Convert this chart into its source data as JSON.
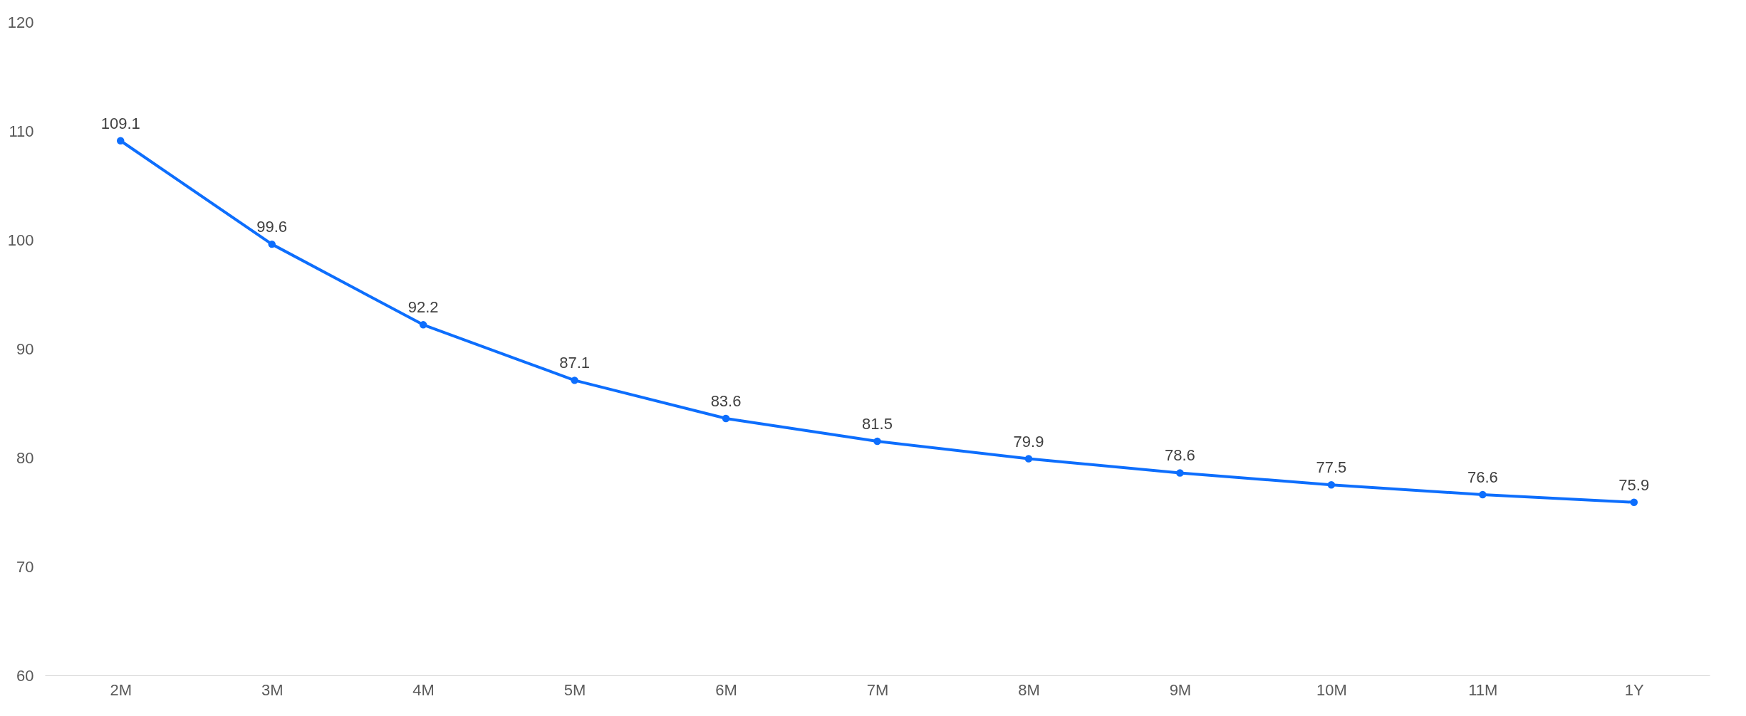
{
  "chart_data": {
    "type": "line",
    "categories": [
      "2M",
      "3M",
      "4M",
      "5M",
      "6M",
      "7M",
      "8M",
      "9M",
      "10M",
      "11M",
      "1Y"
    ],
    "series": [
      {
        "color": "#0d6efd",
        "values": [
          109.1,
          99.6,
          92.2,
          87.1,
          83.6,
          81.5,
          79.9,
          78.6,
          77.5,
          76.6,
          75.9
        ]
      }
    ],
    "ylim": [
      60,
      120
    ],
    "yticks": [
      60,
      70,
      80,
      90,
      100,
      110,
      120
    ],
    "grid": false,
    "legend": false,
    "marker": "circle",
    "line_style": "solid",
    "data_labels": true
  }
}
